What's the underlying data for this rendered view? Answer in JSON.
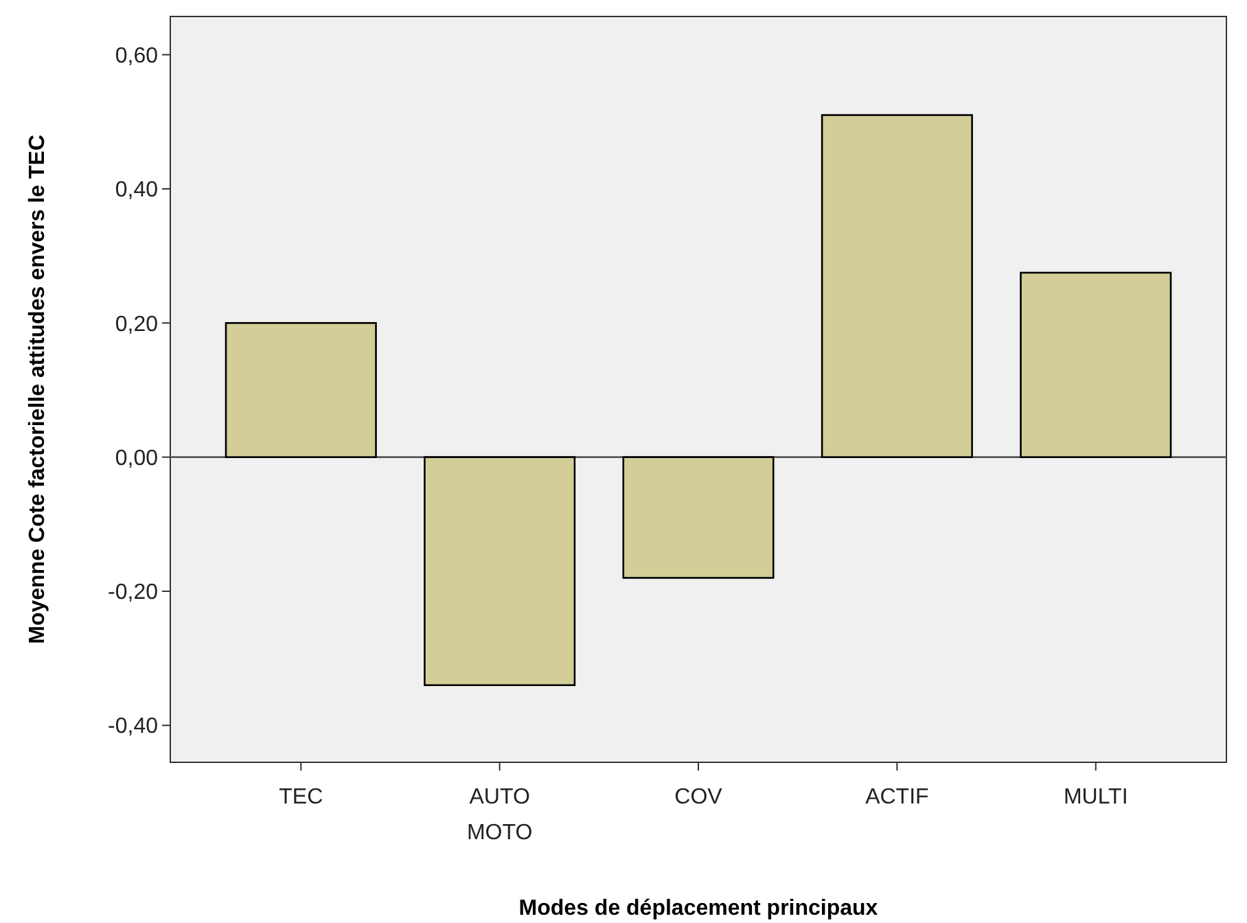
{
  "chart_data": {
    "type": "bar",
    "xlabel": "Modes de déplacement principaux",
    "ylabel": "Moyenne Cote factorielle attitudes envers le TEC",
    "categories": [
      "TEC",
      "AUTO MOTO",
      "COV",
      "ACTIF",
      "MULTI"
    ],
    "values": [
      0.2,
      -0.34,
      -0.18,
      0.51,
      0.275
    ],
    "color": "#d3ce97",
    "ylim": [
      -0.455,
      0.657
    ],
    "yticks": [
      {
        "value": -0.4,
        "label": "-0,40"
      },
      {
        "value": -0.2,
        "label": "-0,20"
      },
      {
        "value": 0,
        "label": "0,00"
      },
      {
        "value": 0.2,
        "label": "0,20"
      },
      {
        "value": 0.4,
        "label": "0,40"
      },
      {
        "value": 0.6,
        "label": "0,60"
      }
    ],
    "ref_lines": [
      {
        "axis": "y",
        "value": 0,
        "color": "#555555"
      }
    ]
  }
}
